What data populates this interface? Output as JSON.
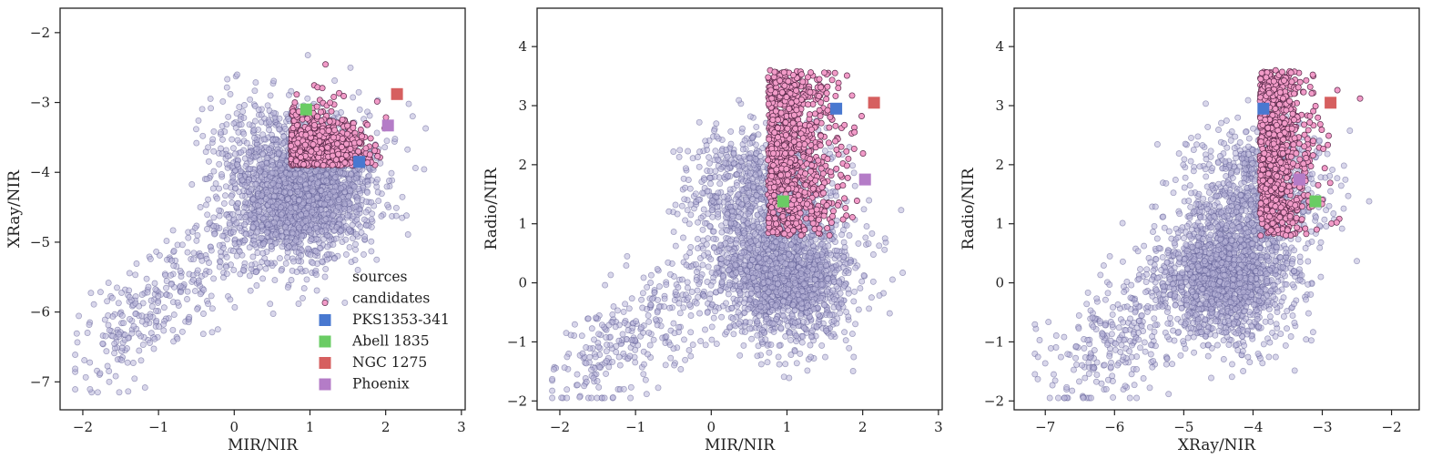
{
  "chart_data": [
    {
      "type": "scatter",
      "xlabel": "MIR/NIR",
      "ylabel": "XRay/NIR",
      "xlim": [
        -2.3,
        3.05
      ],
      "ylim": [
        -7.4,
        -1.65
      ],
      "xticks": [
        -2,
        -1,
        0,
        1,
        2,
        3
      ],
      "yticks": [
        -7,
        -6,
        -5,
        -4,
        -3,
        -2
      ],
      "sources_cloud": {
        "x_mean": 0.8,
        "y_mean": -4.5,
        "x_range": [
          -2.1,
          2.2
        ],
        "y_range": [
          -7.2,
          -2.2
        ]
      },
      "candidates_cloud": {
        "x_range": [
          0.6,
          2.75
        ],
        "y_range": [
          -3.95,
          -1.9
        ]
      },
      "named_sources": [
        {
          "name": "PKS1353-341",
          "x": 1.65,
          "y": -3.85
        },
        {
          "name": "Abell 1835",
          "x": 0.95,
          "y": -3.1
        },
        {
          "name": "NGC 1275",
          "x": 2.15,
          "y": -2.88
        },
        {
          "name": "Phoenix",
          "x": 2.03,
          "y": -3.33
        }
      ],
      "legend": {
        "position": "lower-right",
        "entries": [
          "sources",
          "candidates",
          "PKS1353-341",
          "Abell 1835",
          "NGC 1275",
          "Phoenix"
        ]
      }
    },
    {
      "type": "scatter",
      "xlabel": "MIR/NIR",
      "ylabel": "Radio/NIR",
      "xlim": [
        -2.3,
        3.05
      ],
      "ylim": [
        -2.15,
        4.65
      ],
      "xticks": [
        -2,
        -1,
        0,
        1,
        2,
        3
      ],
      "yticks": [
        -2,
        -1,
        0,
        1,
        2,
        3,
        4
      ],
      "sources_cloud": {
        "x_range": [
          -2.0,
          2.6
        ],
        "y_range": [
          -2.0,
          4.2
        ]
      },
      "candidates_cloud": {
        "x_range": [
          0.65,
          2.75
        ],
        "y_range": [
          0.8,
          4.3
        ]
      },
      "named_sources": [
        {
          "name": "PKS1353-341",
          "x": 1.65,
          "y": 2.95
        },
        {
          "name": "Abell 1835",
          "x": 0.95,
          "y": 1.38
        },
        {
          "name": "NGC 1275",
          "x": 2.15,
          "y": 3.05
        },
        {
          "name": "Phoenix",
          "x": 2.03,
          "y": 1.75
        }
      ]
    },
    {
      "type": "scatter",
      "xlabel": "XRay/NIR",
      "ylabel": "Radio/NIR",
      "xlim": [
        -7.45,
        -1.6
      ],
      "ylim": [
        -2.15,
        4.65
      ],
      "xticks": [
        -7,
        -6,
        -5,
        -4,
        -3,
        -2
      ],
      "yticks": [
        -2,
        -1,
        0,
        1,
        2,
        3,
        4
      ],
      "sources_cloud": {
        "x_range": [
          -7.3,
          -2.2
        ],
        "y_range": [
          -2.0,
          4.2
        ]
      },
      "candidates_cloud": {
        "x_range": [
          -4.0,
          -1.9
        ],
        "y_range": [
          0.8,
          4.3
        ]
      },
      "named_sources": [
        {
          "name": "PKS1353-341",
          "x": -3.85,
          "y": 2.95
        },
        {
          "name": "Abell 1835",
          "x": -3.1,
          "y": 1.38
        },
        {
          "name": "NGC 1275",
          "x": -2.88,
          "y": 3.05
        },
        {
          "name": "Phoenix",
          "x": -3.33,
          "y": 1.75
        }
      ]
    }
  ],
  "colors": {
    "sources_fill": "#b8b4d8",
    "sources_edge": "#5a5890",
    "candidates_fill": "#f29bc8",
    "candidates_edge": "#5a2a4a",
    "PKS1353-341": "#4878d0",
    "Abell 1835": "#6acc64",
    "NGC 1275": "#d65f5f",
    "Phoenix": "#b47cc7"
  }
}
